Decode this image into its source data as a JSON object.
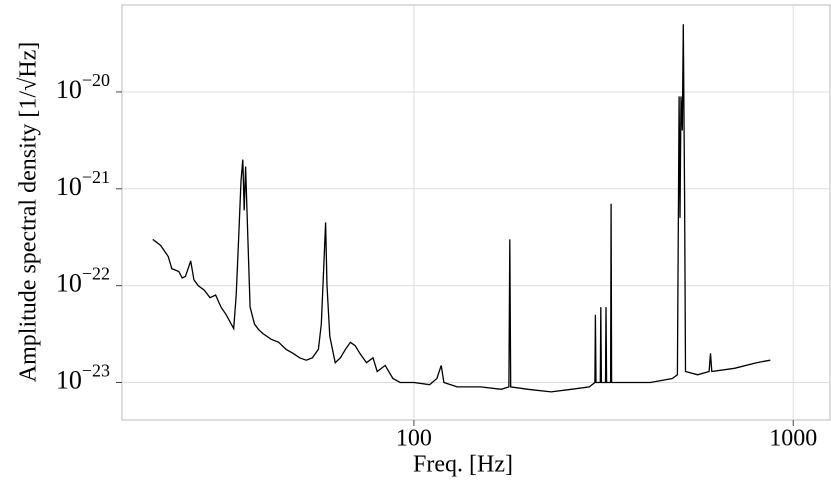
{
  "chart_data": {
    "type": "line",
    "xlabel": "Freq. [Hz]",
    "ylabel": "Amplitude spectral density [1/√Hz]",
    "xscale": "log",
    "yscale": "log",
    "grid": true,
    "xlim": [
      17,
      1250
    ],
    "ylim": [
      4.1e-24,
      7.9e-20
    ],
    "xticks": [
      100,
      1000
    ],
    "yticks": [
      {
        "value": 1e-23,
        "label": "10",
        "exponent": "−23"
      },
      {
        "value": 1e-22,
        "label": "10",
        "exponent": "−22"
      },
      {
        "value": 1e-21,
        "label": "10",
        "exponent": "−21"
      },
      {
        "value": 1e-20,
        "label": "10",
        "exponent": "−20"
      }
    ],
    "series": [
      {
        "color": "#000000",
        "x": [
          20.5,
          21.5,
          22.5,
          23,
          24,
          24.5,
          25,
          25.8,
          26.3,
          27,
          28,
          29,
          30,
          31,
          32,
          33,
          33.5,
          34,
          34.5,
          35,
          35.4,
          35.7,
          36,
          36.5,
          37,
          38,
          39,
          40,
          42,
          44,
          46,
          48,
          50,
          52,
          54,
          56,
          57,
          58,
          58.5,
          59,
          60,
          62,
          64,
          66,
          68,
          70,
          72,
          75,
          78,
          80,
          84,
          88,
          92,
          100,
          110,
          115,
          118,
          120,
          130,
          150,
          170,
          178,
          179,
          180,
          200,
          230,
          260,
          290,
          300,
          301,
          302,
          310,
          311,
          312,
          320,
          321,
          322,
          330,
          331,
          332,
          380,
          420,
          480,
          495,
          500,
          503,
          506,
          510,
          513,
          517,
          520,
          560,
          600,
          605,
          610,
          700,
          800,
          870
        ],
        "values": [
          3e-22,
          2.6e-22,
          2e-22,
          1.5e-22,
          1.4e-22,
          1.2e-22,
          1.25e-22,
          1.8e-22,
          1.15e-22,
          1e-22,
          9e-23,
          7.5e-23,
          8e-23,
          6e-23,
          5e-23,
          4e-23,
          3.6e-23,
          8e-23,
          3e-22,
          1.2e-21,
          2e-21,
          6e-22,
          1.7e-21,
          3e-22,
          6e-23,
          4e-23,
          3.5e-23,
          3.2e-23,
          2.8e-23,
          2.6e-23,
          2.2e-23,
          2e-23,
          1.8e-23,
          1.7e-23,
          1.8e-23,
          2.2e-23,
          4e-23,
          2e-22,
          4.5e-22,
          1e-22,
          3e-23,
          1.6e-23,
          1.8e-23,
          2.2e-23,
          2.6e-23,
          2.4e-23,
          2e-23,
          1.6e-23,
          1.8e-23,
          1.3e-23,
          1.5e-23,
          1.1e-23,
          1e-23,
          1e-23,
          9.5e-24,
          1.1e-23,
          1.5e-23,
          1e-23,
          9e-24,
          9e-24,
          8.5e-24,
          9e-24,
          3e-22,
          9e-24,
          8.5e-24,
          8e-24,
          8.5e-24,
          9e-24,
          1e-23,
          5e-23,
          1e-23,
          1e-23,
          6e-23,
          1e-23,
          1e-23,
          6e-23,
          1e-23,
          1e-23,
          7e-22,
          1e-23,
          1e-23,
          1e-23,
          1.1e-23,
          1.2e-23,
          9e-21,
          5e-22,
          9e-21,
          4e-21,
          5e-20,
          8e-22,
          1.3e-23,
          1.2e-23,
          1.3e-23,
          2e-23,
          1.3e-23,
          1.4e-23,
          1.6e-23,
          1.7e-23
        ]
      }
    ]
  }
}
